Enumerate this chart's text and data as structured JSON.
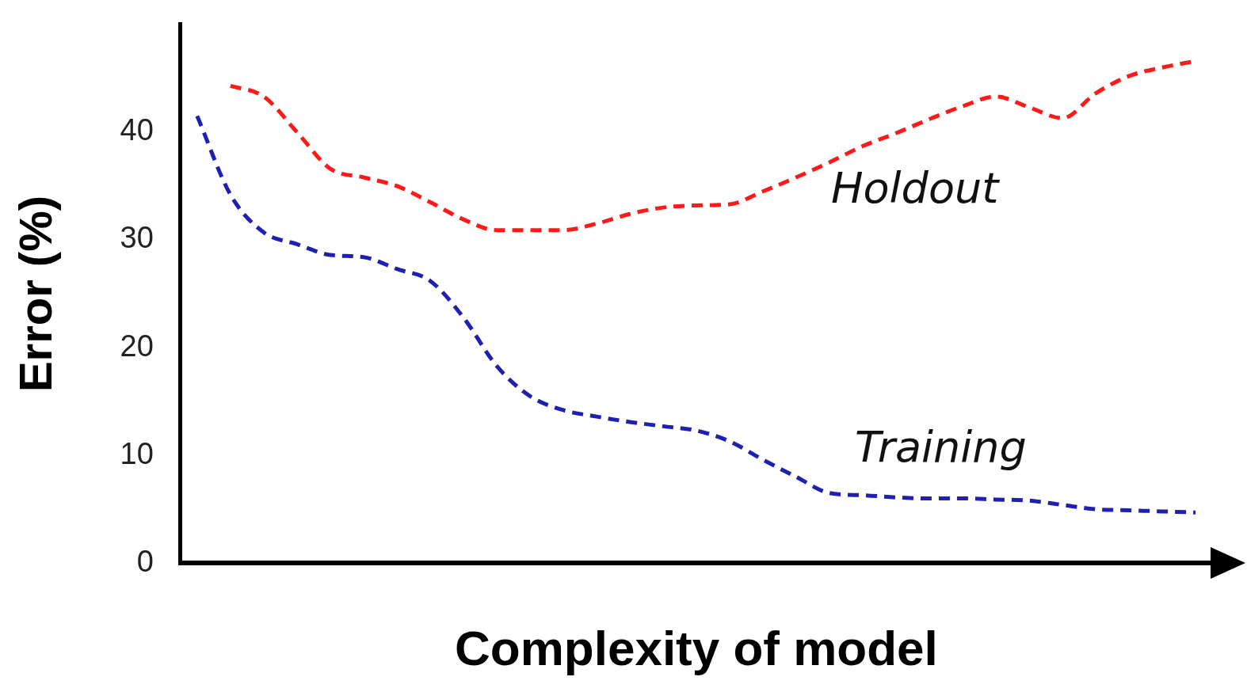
{
  "chart_data": {
    "type": "line",
    "xlabel": "Complexity of model",
    "ylabel": "Error (%)",
    "categories": [
      null,
      null,
      null,
      null,
      null,
      null,
      null,
      null,
      null,
      null,
      null,
      null,
      null,
      null,
      null,
      null,
      null,
      null,
      null,
      null,
      null,
      null,
      null,
      null,
      null,
      null,
      null,
      null,
      null,
      null,
      null
    ],
    "series": [
      {
        "name": "Holdout",
        "color": "#ff1a1a",
        "line_style": "dashed",
        "values": [
          null,
          44.3,
          43.3,
          40,
          36.6,
          35.8,
          35.0,
          33.5,
          31.9,
          30.9,
          30.9,
          30.9,
          31.5,
          32.4,
          33.0,
          33.2,
          33.3,
          34.5,
          35.8,
          37.2,
          38.7,
          39.9,
          41.2,
          42.4,
          43.3,
          42.3,
          41.3,
          43.6,
          45.2,
          46.0,
          46.6
        ]
      },
      {
        "name": "Training",
        "color": "#2020b0",
        "line_style": "dashed",
        "values": [
          41.5,
          34.2,
          30.7,
          29.6,
          28.6,
          28.4,
          27.3,
          26.2,
          22.8,
          18.3,
          15.5,
          14.2,
          13.6,
          13.1,
          12.7,
          12.3,
          11.3,
          9.6,
          8.0,
          6.5,
          6.3,
          6.1,
          6.0,
          6.0,
          5.9,
          5.8,
          5.4,
          5.0,
          4.9,
          4.8,
          4.7
        ]
      }
    ],
    "ylim": [
      0,
      50
    ],
    "yticks": [
      0,
      10,
      20,
      30,
      40
    ],
    "grid": false,
    "legend": false,
    "marker": "none"
  }
}
